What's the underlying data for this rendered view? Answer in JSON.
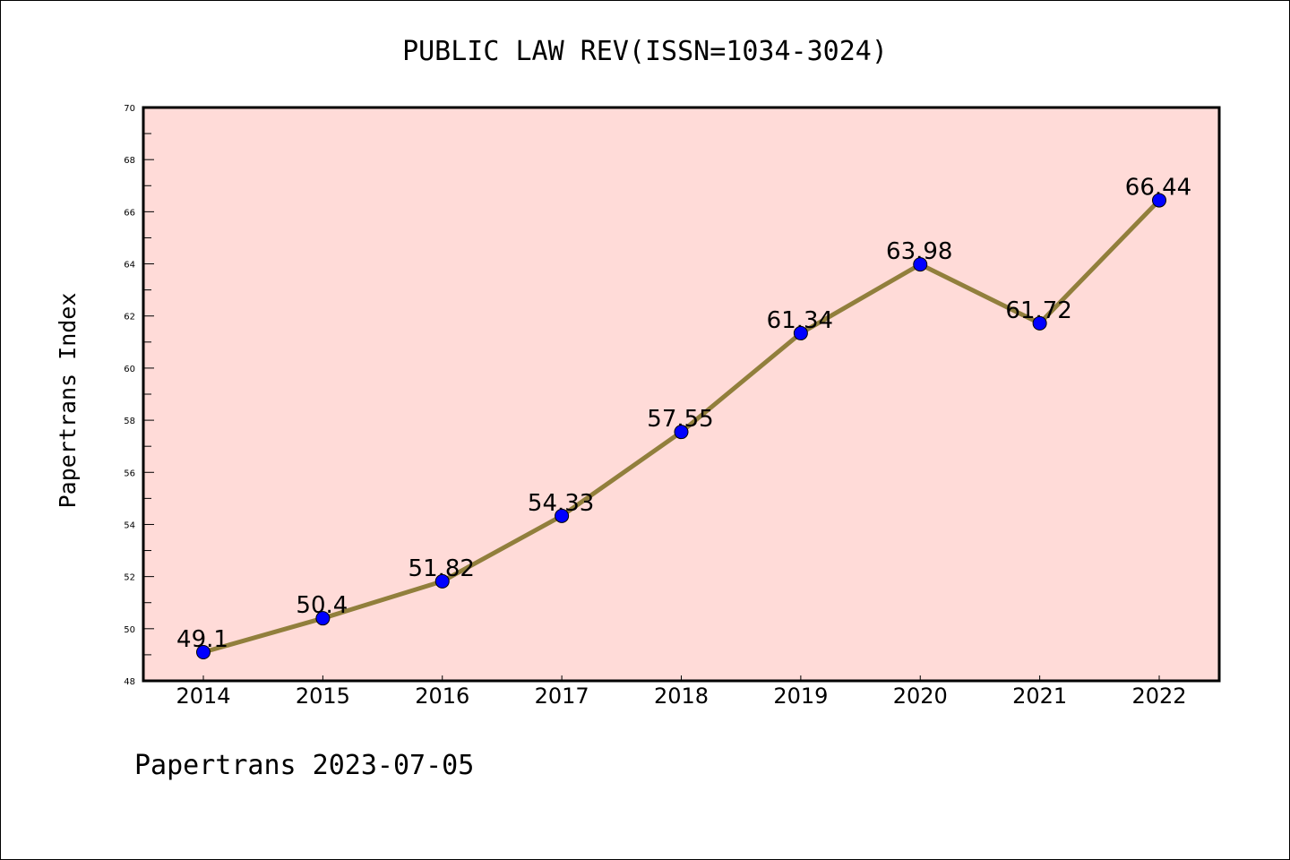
{
  "chart_data": {
    "type": "line",
    "title": "PUBLIC LAW REV(ISSN=1034-3024)",
    "xlabel": "",
    "ylabel": "Papertrans Index",
    "categories": [
      "2014",
      "2015",
      "2016",
      "2017",
      "2018",
      "2019",
      "2020",
      "2021",
      "2022"
    ],
    "series": [
      {
        "name": "Papertrans Index",
        "values": [
          49.1,
          50.4,
          51.82,
          54.33,
          57.55,
          61.34,
          63.98,
          61.72,
          66.44
        ],
        "labels": [
          "49.1",
          "50.4",
          "51.82",
          "54.33",
          "57.55",
          "61.34",
          "63.98",
          "61.72",
          "66.44"
        ]
      }
    ],
    "ylim": [
      48,
      70
    ],
    "yticks": [
      48,
      50,
      52,
      54,
      56,
      58,
      60,
      62,
      64,
      66,
      68,
      70
    ],
    "ytick_labels": [
      "48",
      "50",
      "52",
      "54",
      "56",
      "58",
      "60",
      "62",
      "64",
      "66",
      "68",
      "70"
    ],
    "grid": false,
    "footer": "Papertrans 2023-07-05",
    "colors": {
      "plot_background": "#ffdbd8",
      "line": "#917f3c",
      "marker": "#0000ff"
    }
  }
}
